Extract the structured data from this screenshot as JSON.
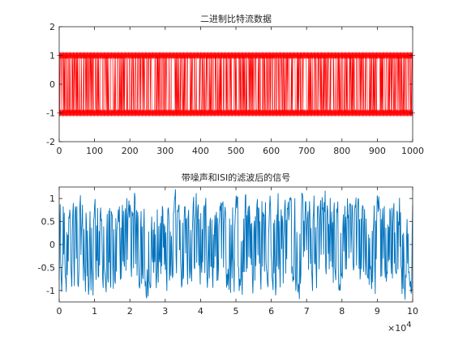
{
  "figure": {
    "background": "#ffffff",
    "axis_color": "#262626"
  },
  "chart_data": [
    {
      "type": "line",
      "title": "二进制比特流数据",
      "xlabel": "",
      "ylabel": "",
      "xlim": [
        0,
        1000
      ],
      "ylim": [
        -2,
        2
      ],
      "xticks": [
        0,
        100,
        200,
        300,
        400,
        500,
        600,
        700,
        800,
        900,
        1000
      ],
      "xtick_labels": [
        "0",
        "100",
        "200",
        "300",
        "400",
        "500",
        "600",
        "700",
        "800",
        "900",
        "1000"
      ],
      "yticks": [
        -2,
        -1,
        0,
        1,
        2
      ],
      "ytick_labels": [
        "-2",
        "-1",
        "0",
        "1",
        "2"
      ],
      "grid": false,
      "series": [
        {
          "color": "#ff0000",
          "marker": "*",
          "x_range": [
            1,
            1000
          ],
          "num_points": 1000,
          "levels": [
            -1,
            1
          ]
        }
      ]
    },
    {
      "type": "line",
      "title": "带噪声和ISI的滤波后的信号",
      "xlabel": "",
      "ylabel": "",
      "xlim": [
        0,
        10
      ],
      "ylim": [
        -1.25,
        1.25
      ],
      "x_exponent_label": "×10",
      "x_exponent_power": "4",
      "xticks": [
        0,
        1,
        2,
        3,
        4,
        5,
        6,
        7,
        8,
        9,
        10
      ],
      "xtick_labels": [
        "0",
        "1",
        "2",
        "3",
        "4",
        "5",
        "6",
        "7",
        "8",
        "9",
        "10"
      ],
      "yticks": [
        -1,
        -0.5,
        0,
        0.5,
        1
      ],
      "ytick_labels": [
        "-1",
        "-0.5",
        "0",
        "0.5",
        "1"
      ],
      "grid": false,
      "series": [
        {
          "color": "#0072bd",
          "x_range": [
            0,
            10
          ],
          "num_points": 700,
          "amplitude_range": [
            -1.2,
            1.2
          ]
        }
      ]
    }
  ]
}
